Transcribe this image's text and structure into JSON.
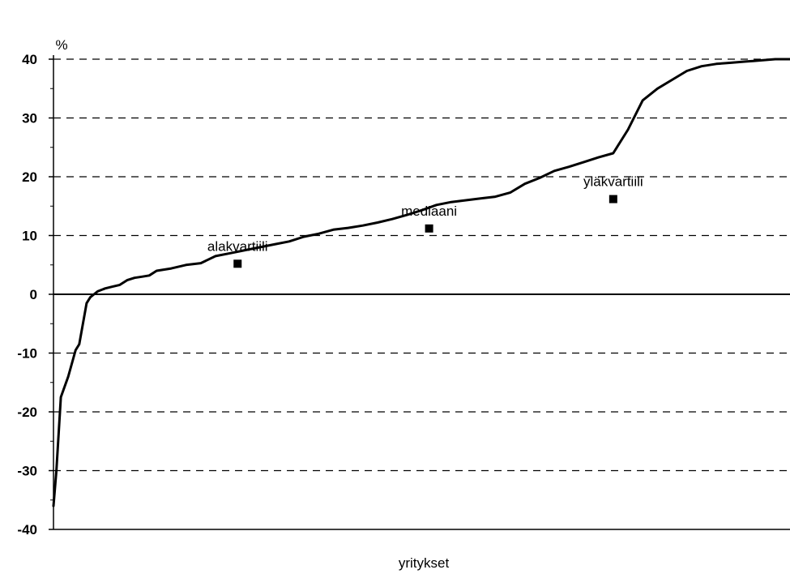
{
  "chart_data": {
    "type": "line",
    "title": "",
    "ylabel": "%",
    "xlabel": "yritykset",
    "ylim": [
      -40,
      40
    ],
    "yticks": [
      40,
      30,
      20,
      10,
      0,
      -10,
      -20,
      -30,
      -40
    ],
    "grid": "dashed horizontal",
    "legend": "none",
    "line_color": "#000000",
    "series": [
      {
        "x": [
          0,
          0.4,
          1,
          2,
          3,
          3.5,
          4.5,
          5,
          5.5,
          6,
          7,
          8,
          9,
          10,
          11,
          12,
          13,
          14,
          16,
          18,
          20,
          22,
          24,
          26,
          28,
          30,
          32,
          34,
          36,
          38,
          40,
          42,
          44,
          46,
          48,
          50,
          52,
          54,
          56,
          58,
          60,
          62,
          64,
          66,
          68,
          70,
          72,
          74,
          76,
          78,
          80,
          82,
          84,
          86,
          88,
          90,
          92,
          94,
          95,
          96,
          97,
          98,
          99,
          100
        ],
        "values": [
          -36,
          -30,
          -17.5,
          -14,
          -9.5,
          -8.5,
          -1.5,
          -0.5,
          0,
          0.5,
          1,
          1.3,
          1.6,
          2.4,
          2.8,
          3,
          3.2,
          4,
          4.4,
          5,
          5.3,
          6.5,
          7,
          7.5,
          8,
          8.5,
          9,
          9.8,
          10.3,
          11,
          11.3,
          11.7,
          12.2,
          12.8,
          13.5,
          14.3,
          15.2,
          15.7,
          16,
          16.3,
          16.6,
          17.3,
          18.8,
          19.8,
          21,
          21.7,
          22.5,
          23.3,
          24,
          28,
          33,
          35,
          36.5,
          38,
          38.8,
          39.2,
          39.4,
          39.6,
          39.7,
          39.8,
          39.9,
          40,
          40,
          40
        ]
      }
    ],
    "annotations": [
      {
        "text": "alakvartiili",
        "x": 25,
        "y": 5.2
      },
      {
        "text": "mediaani",
        "x": 51,
        "y": 11.2
      },
      {
        "text": "yläkvartiili",
        "x": 76,
        "y": 16.2
      }
    ]
  }
}
